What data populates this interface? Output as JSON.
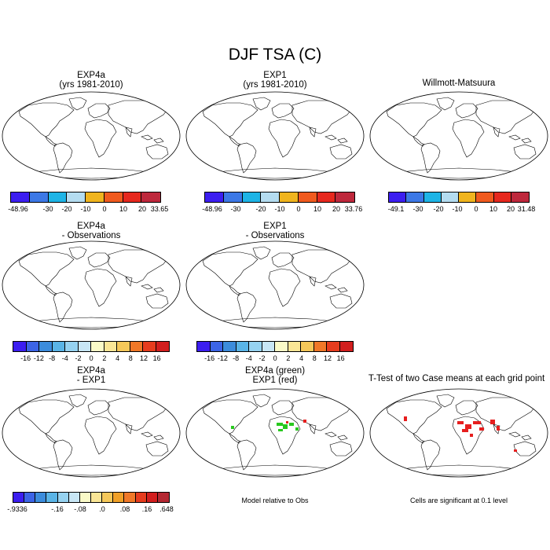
{
  "page_title": "DJF TSA (C)",
  "colors": {
    "abs": [
      "#3c1ef0",
      "#3c78e6",
      "#1eb4e6",
      "#b4dcf0",
      "#f0b41e",
      "#f05a1e",
      "#e6281e",
      "#be283c"
    ],
    "diff": [
      "#3c1ef0",
      "#3c64e6",
      "#3c8cdc",
      "#5ab4e6",
      "#96d2f0",
      "#c8e6f5",
      "#fafac8",
      "#fae696",
      "#f5c85a",
      "#f0a028",
      "#f07828",
      "#e63c1e",
      "#d21e1e",
      "#b42832"
    ],
    "land": "#f3e8a4",
    "ocean": "#ffffff",
    "green_marks": "#28c81e",
    "red_marks": "#e61e1e"
  },
  "row1": [
    {
      "title_l1": "EXP4a",
      "title_l2": "(yrs 1981-2010)",
      "ticks": [
        "-48.96",
        "-30",
        "-20",
        "-10",
        "0",
        "10",
        "20",
        "33.65"
      ]
    },
    {
      "title_l1": "EXP1",
      "title_l2": "(yrs 1981-2010)",
      "ticks": [
        "-48.96",
        "-30",
        "-20",
        "-10",
        "0",
        "10",
        "20",
        "33.76"
      ]
    },
    {
      "title_l1": "Willmott-Matsuura",
      "title_l2": "",
      "ticks": [
        "-49.1",
        "-30",
        "-20",
        "-10",
        "0",
        "10",
        "20",
        "31.48"
      ]
    }
  ],
  "row2": [
    {
      "title_l1": "EXP4a",
      "title_l2": "- Observations",
      "ticks": [
        "-16",
        "-12",
        "-8",
        "-4",
        "-2",
        "0",
        "2",
        "4",
        "8",
        "12",
        "16"
      ]
    },
    {
      "title_l1": "EXP1",
      "title_l2": "- Observations",
      "ticks": [
        "-16",
        "-12",
        "-8",
        "-4",
        "-2",
        "0",
        "2",
        "4",
        "8",
        "12",
        "16"
      ]
    }
  ],
  "row3": [
    {
      "title_l1": "EXP4a",
      "title_l2": "- EXP1",
      "ticks": [
        "-.9336",
        "-.16",
        "-.08",
        ".0",
        ".08",
        ".16",
        ".648"
      ]
    },
    {
      "title_l1": "EXP4a (green)",
      "title_l2": "EXP1 (red)",
      "note": "Model relative to Obs"
    },
    {
      "title_l1": "T-Test of two Case means at each grid point",
      "title_l2": "",
      "note": "Cells are significant at 0.1 level"
    }
  ]
}
